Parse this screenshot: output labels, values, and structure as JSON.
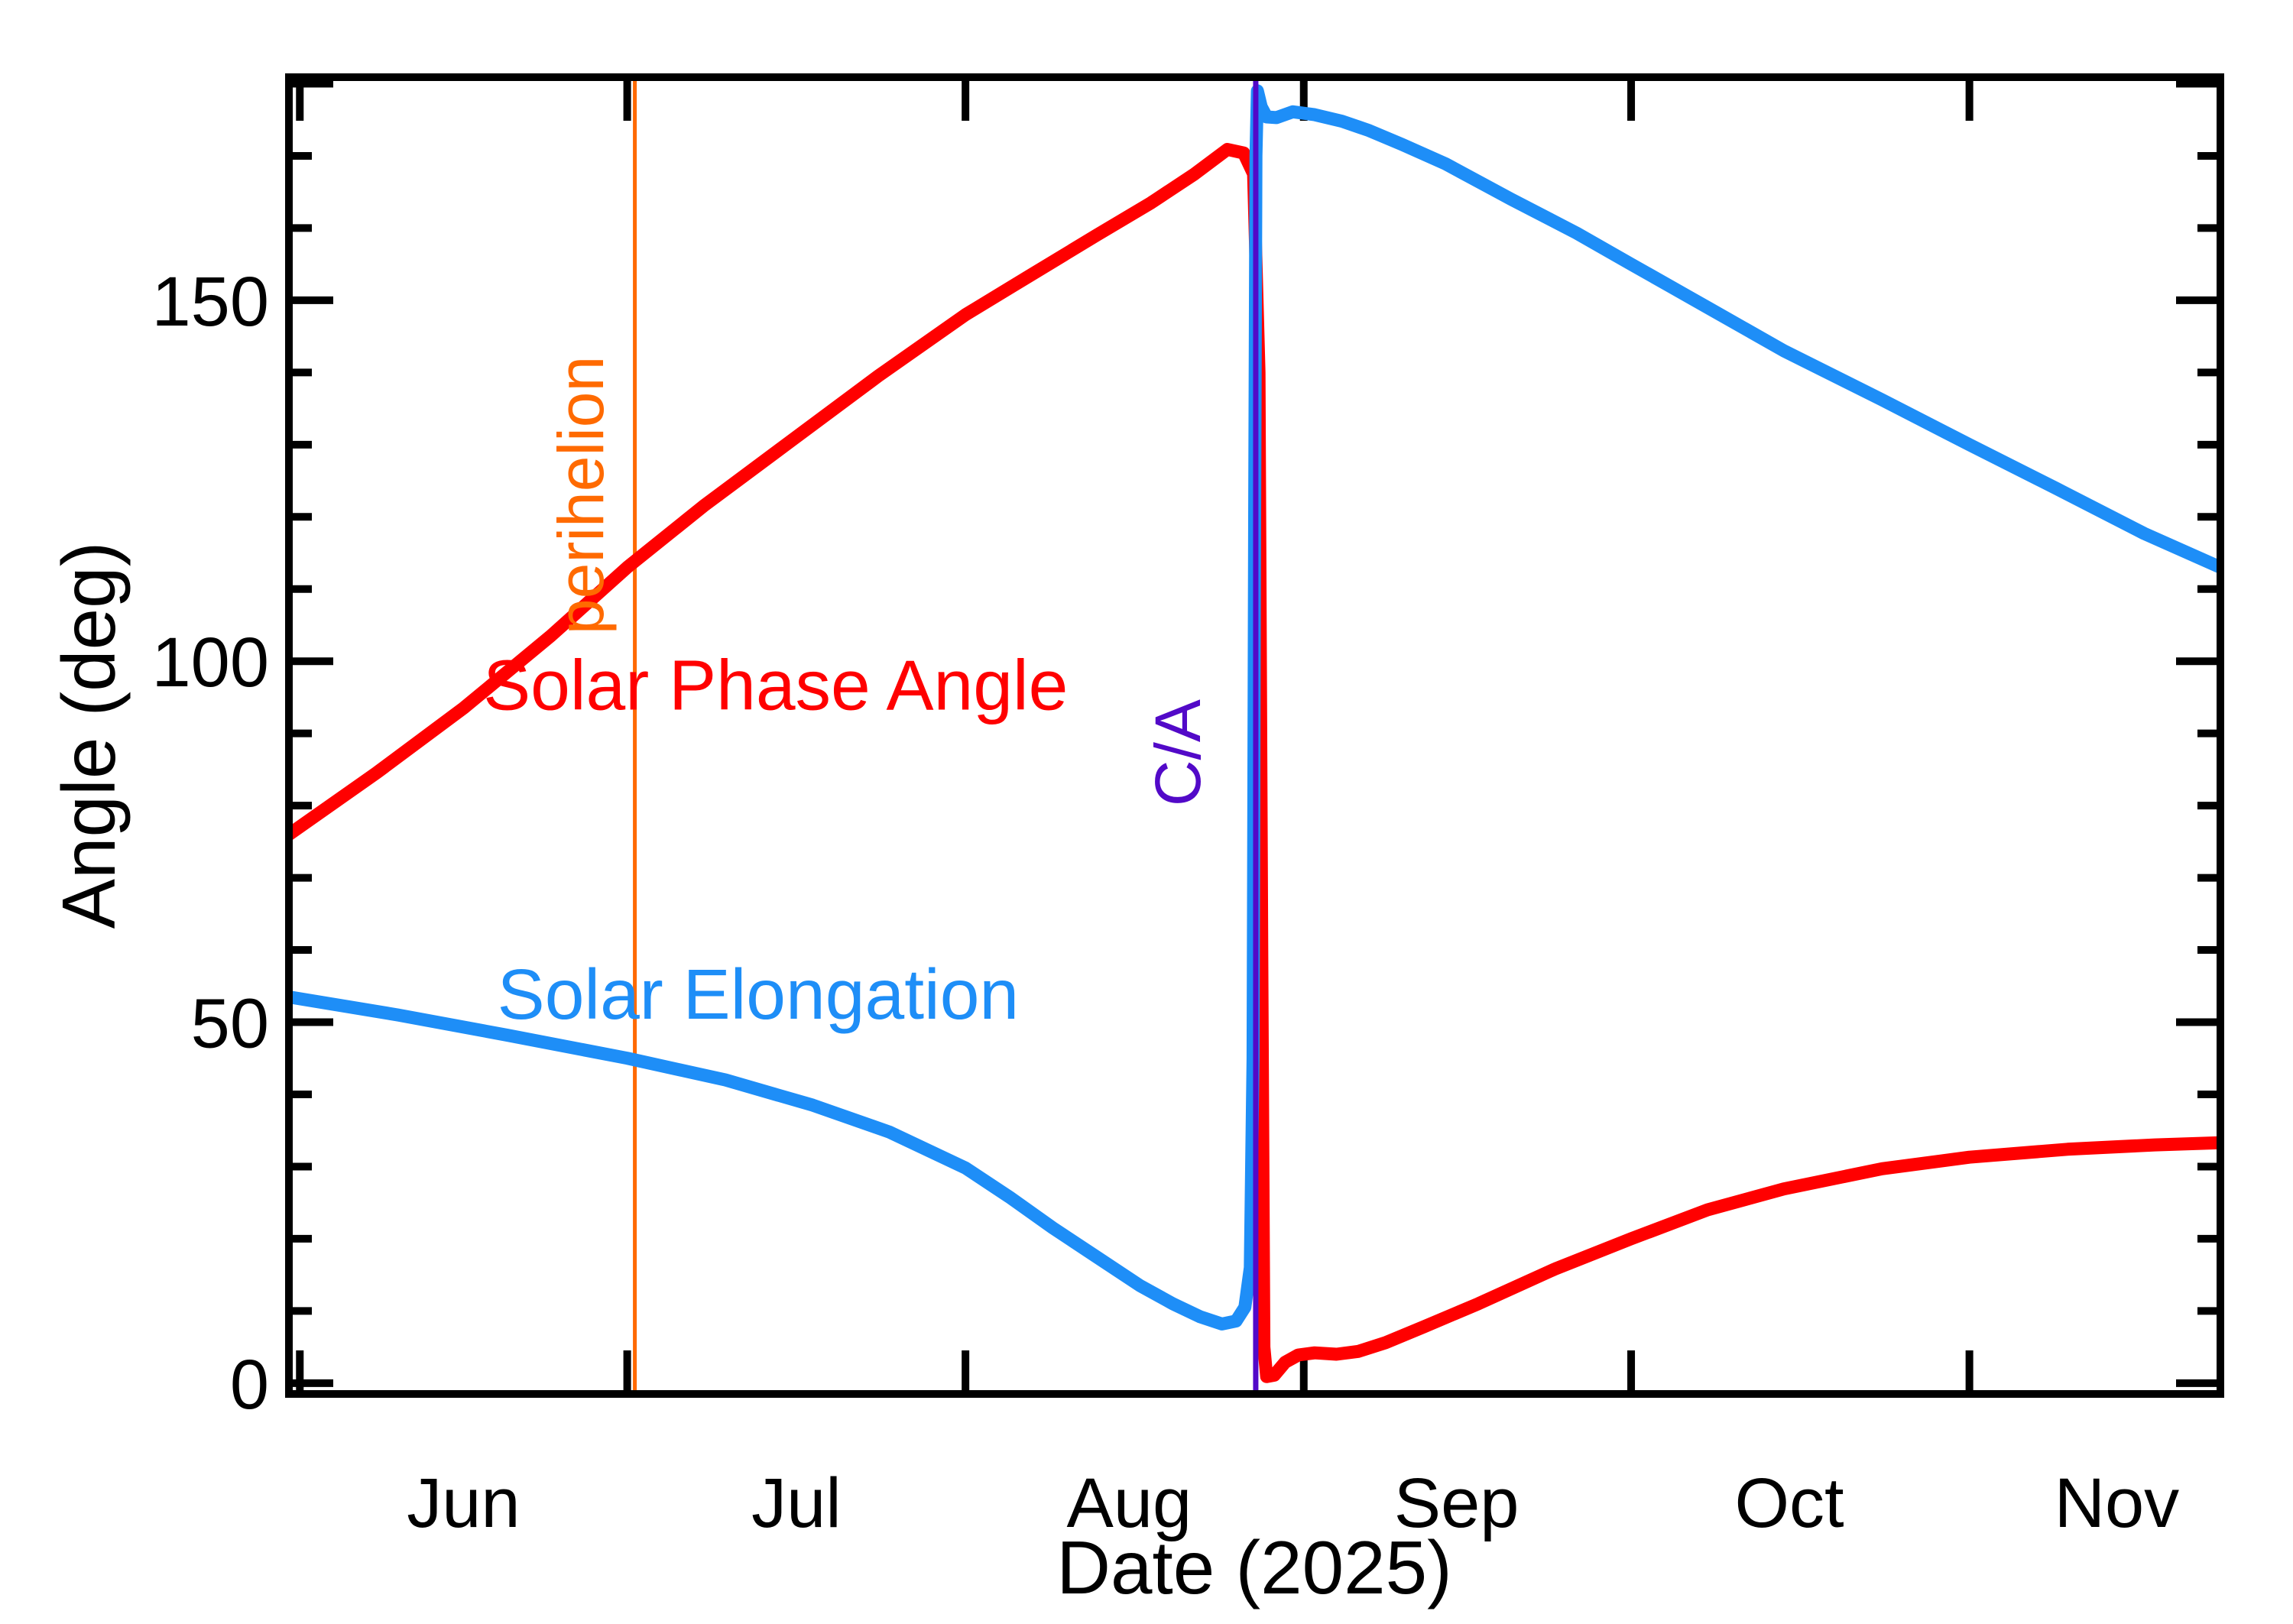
{
  "chart_data": {
    "type": "line",
    "title": "",
    "xlabel": "Date (2025)",
    "ylabel": "Angle (deg)",
    "grid": false,
    "legend_position": "inline-labels",
    "x_axis": {
      "title": "Date (2025)",
      "range_days": [
        0,
        177
      ],
      "range_note_start": "late May 2025",
      "range_note_end": "late Nov 2025",
      "months": [
        {
          "label": "Jun",
          "label_day": 16,
          "tick_day": 1
        },
        {
          "label": "Jul",
          "label_day": 46.5,
          "tick_day": 31
        },
        {
          "label": "Aug",
          "label_day": 77,
          "tick_day": 62
        },
        {
          "label": "Sep",
          "label_day": 107,
          "tick_day": 93
        },
        {
          "label": "Oct",
          "label_day": 137.5,
          "tick_day": 123
        },
        {
          "label": "Nov",
          "label_day": 167.5,
          "tick_day": 154
        }
      ]
    },
    "y_axis": {
      "title": "Angle (deg)",
      "range": [
        -1.5,
        180.9
      ],
      "labeled_ticks": [
        {
          "text": "0",
          "value": 0
        },
        {
          "text": "50",
          "value": 50
        },
        {
          "text": "100",
          "value": 100
        },
        {
          "text": "150",
          "value": 150
        }
      ],
      "unlabeled_major_ticks": [
        180
      ],
      "minor_tick_step": 10
    },
    "series": [
      {
        "name": "Solar Phase Angle",
        "color": "#ff0000",
        "label": {
          "text": "Solar Phase Angle",
          "day": 44.6,
          "deg": 93.3,
          "rotation": 0
        },
        "points": [
          [
            0,
            76
          ],
          [
            8,
            84.5
          ],
          [
            16,
            93.5
          ],
          [
            24,
            103.5
          ],
          [
            31,
            113
          ],
          [
            38,
            121.5
          ],
          [
            46,
            130.5
          ],
          [
            54,
            139.5
          ],
          [
            62,
            148
          ],
          [
            68,
            153.5
          ],
          [
            74,
            159
          ],
          [
            79,
            163.5
          ],
          [
            83,
            167.5
          ],
          [
            86,
            170.9
          ],
          [
            87.5,
            170.4
          ],
          [
            88.4,
            167.5
          ],
          [
            88.9,
            140
          ],
          [
            89.15,
            60
          ],
          [
            89.35,
            5
          ],
          [
            89.6,
            0.9
          ],
          [
            90.3,
            1.1
          ],
          [
            91.3,
            2.9
          ],
          [
            92.5,
            3.9
          ],
          [
            94,
            4.2
          ],
          [
            96,
            4.0
          ],
          [
            98,
            4.4
          ],
          [
            100.5,
            5.6
          ],
          [
            104,
            7.8
          ],
          [
            109,
            11
          ],
          [
            116,
            15.8
          ],
          [
            123,
            20
          ],
          [
            130,
            24
          ],
          [
            137,
            26.9
          ],
          [
            146,
            29.7
          ],
          [
            154,
            31.3
          ],
          [
            163,
            32.4
          ],
          [
            171,
            33
          ],
          [
            177,
            33.3
          ]
        ]
      },
      {
        "name": "Solar Elongation",
        "color": "#1e8ef7",
        "label": {
          "text": "Solar Elongation",
          "day": 43,
          "deg": 50.5,
          "rotation": 0
        },
        "points": [
          [
            0,
            53.5
          ],
          [
            10,
            51
          ],
          [
            20,
            48.2
          ],
          [
            31,
            45
          ],
          [
            40,
            42
          ],
          [
            48,
            38.5
          ],
          [
            55,
            34.8
          ],
          [
            62,
            29.8
          ],
          [
            66,
            25.8
          ],
          [
            70,
            21.5
          ],
          [
            74,
            17.5
          ],
          [
            78,
            13.5
          ],
          [
            81,
            11
          ],
          [
            83.5,
            9.2
          ],
          [
            85.5,
            8.2
          ],
          [
            86.8,
            8.6
          ],
          [
            87.6,
            10.5
          ],
          [
            88.1,
            16
          ],
          [
            88.35,
            45
          ],
          [
            88.5,
            120
          ],
          [
            88.62,
            170
          ],
          [
            88.75,
            179
          ],
          [
            89.1,
            176.8
          ],
          [
            89.6,
            175.4
          ],
          [
            90.5,
            175.3
          ],
          [
            92,
            176.1
          ],
          [
            94,
            175.7
          ],
          [
            96.5,
            174.8
          ],
          [
            99,
            173.5
          ],
          [
            102,
            171.6
          ],
          [
            106,
            168.9
          ],
          [
            112,
            164
          ],
          [
            118,
            159.3
          ],
          [
            123,
            155
          ],
          [
            130,
            149
          ],
          [
            137,
            143
          ],
          [
            146,
            136.2
          ],
          [
            154,
            130
          ],
          [
            162,
            123.9
          ],
          [
            170,
            117.7
          ],
          [
            177,
            113
          ]
        ]
      }
    ],
    "event_lines": [
      {
        "name": "perihelion",
        "label": {
          "text": "perihelion",
          "day": 28.8,
          "deg": 123,
          "rotation": -90
        },
        "day": 31.7,
        "color": "#ff6a00",
        "width": 5
      },
      {
        "name": "close-approach",
        "label": {
          "text": "C/A",
          "day": 83.5,
          "deg": 87.3,
          "rotation": -90
        },
        "day": 88.6,
        "color": "#5209c8",
        "width": 7
      }
    ],
    "axis_color": "#000000",
    "background_color": "#ffffff"
  }
}
